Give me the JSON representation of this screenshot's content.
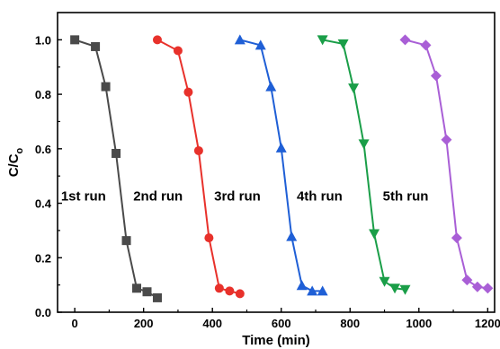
{
  "chart_data": {
    "type": "line",
    "xlabel": "Time (min)",
    "ylabel_main": "C/C",
    "ylabel_sub": "o",
    "xlim": [
      -50,
      1220
    ],
    "ylim": [
      0,
      1.1
    ],
    "xticks": [
      0,
      200,
      400,
      600,
      800,
      1000,
      1200
    ],
    "yticks": [
      0.0,
      0.2,
      0.4,
      0.6,
      0.8,
      1.0
    ],
    "xtick_labels": [
      "0",
      "200",
      "400",
      "600",
      "800",
      "1000",
      "1200"
    ],
    "ytick_labels": [
      "0.0",
      "0.2",
      "0.4",
      "0.6",
      "0.8",
      "1.0"
    ],
    "grid": false,
    "series": [
      {
        "name": "1st run",
        "color": "#4a4a4a",
        "marker": "square",
        "label_pos": [
          -40,
          0.41
        ],
        "x": [
          0,
          60,
          90,
          120,
          150,
          180,
          210,
          240
        ],
        "y": [
          1.0,
          0.975,
          0.828,
          0.583,
          0.263,
          0.088,
          0.075,
          0.053
        ]
      },
      {
        "name": "2nd run",
        "color": "#e8312b",
        "marker": "circle",
        "label_pos": [
          170,
          0.41
        ],
        "x": [
          240,
          300,
          330,
          360,
          390,
          420,
          450,
          480
        ],
        "y": [
          1.0,
          0.96,
          0.808,
          0.593,
          0.273,
          0.088,
          0.078,
          0.068
        ]
      },
      {
        "name": "3rd run",
        "color": "#1f5fd6",
        "marker": "triangle-up",
        "label_pos": [
          405,
          0.41
        ],
        "x": [
          480,
          540,
          570,
          600,
          630,
          660,
          690,
          720
        ],
        "y": [
          1.0,
          0.98,
          0.828,
          0.603,
          0.278,
          0.098,
          0.078,
          0.078
        ]
      },
      {
        "name": "4th run",
        "color": "#1a9e48",
        "marker": "triangle-down",
        "label_pos": [
          645,
          0.41
        ],
        "x": [
          720,
          780,
          810,
          840,
          870,
          900,
          930,
          960
        ],
        "y": [
          1.0,
          0.985,
          0.823,
          0.618,
          0.288,
          0.113,
          0.088,
          0.083
        ]
      },
      {
        "name": "5th run",
        "color": "#a95fd6",
        "marker": "diamond",
        "label_pos": [
          895,
          0.41
        ],
        "x": [
          960,
          1020,
          1050,
          1080,
          1110,
          1140,
          1170,
          1200
        ],
        "y": [
          1.0,
          0.98,
          0.868,
          0.633,
          0.273,
          0.118,
          0.093,
          0.088
        ]
      }
    ]
  }
}
